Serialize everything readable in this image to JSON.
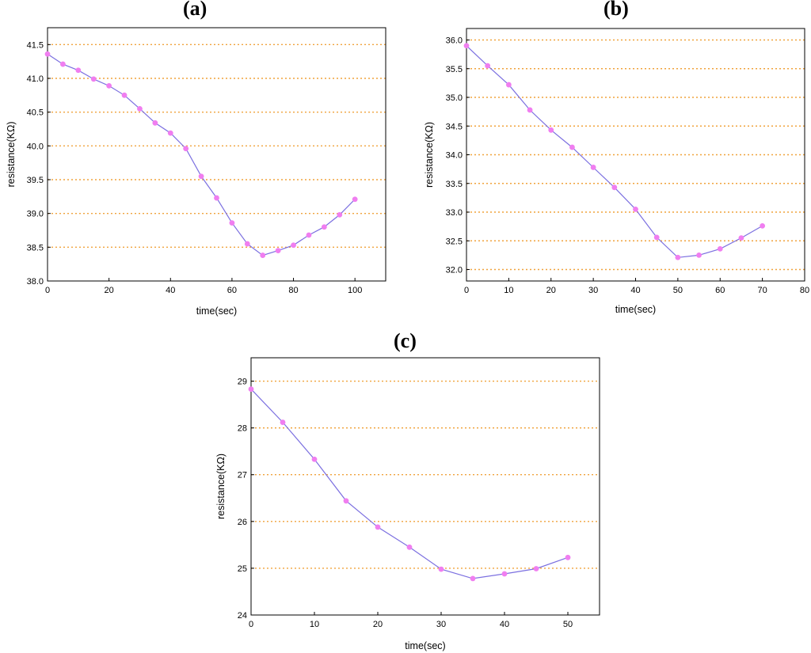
{
  "chart_data": [
    {
      "type": "line",
      "panel_label": "(a)",
      "xlabel": "time(sec)",
      "ylabel": "resistance(KΩ)",
      "xlim": [
        0,
        110
      ],
      "ylim": [
        38.0,
        41.75
      ],
      "xticks": [
        0,
        20,
        40,
        60,
        80,
        100
      ],
      "yticks": [
        38.0,
        38.5,
        39.0,
        39.5,
        40.0,
        40.5,
        41.0,
        41.5
      ],
      "tick_decimals": 1,
      "grid": "horizontal dotted",
      "colors": {
        "line": "#7b6fe0",
        "marker": "#f07ef0",
        "grid": "#f0a33c"
      },
      "series": [
        {
          "x": [
            0,
            5,
            10,
            15,
            20,
            25,
            30,
            35,
            40,
            45,
            50,
            55,
            60,
            65,
            70,
            75,
            80,
            85,
            90,
            95,
            100
          ],
          "y": [
            41.36,
            41.21,
            41.12,
            40.99,
            40.89,
            40.75,
            40.55,
            40.34,
            40.19,
            39.96,
            39.55,
            39.23,
            38.86,
            38.55,
            38.38,
            38.45,
            38.53,
            38.68,
            38.8,
            38.98,
            39.21
          ]
        }
      ]
    },
    {
      "type": "line",
      "panel_label": "(b)",
      "xlabel": "time(sec)",
      "ylabel": "resistance(KΩ)",
      "xlim": [
        0,
        80
      ],
      "ylim": [
        31.8,
        36.2
      ],
      "xticks": [
        0,
        10,
        20,
        30,
        40,
        50,
        60,
        70,
        80
      ],
      "yticks": [
        32.0,
        32.5,
        33.0,
        33.5,
        34.0,
        34.5,
        35.0,
        35.5,
        36.0
      ],
      "tick_decimals": 1,
      "grid": "horizontal dotted",
      "colors": {
        "line": "#7b6fe0",
        "marker": "#f07ef0",
        "grid": "#f0a33c"
      },
      "series": [
        {
          "x": [
            0,
            5,
            10,
            15,
            20,
            25,
            30,
            35,
            40,
            45,
            50,
            55,
            60,
            65,
            70
          ],
          "y": [
            35.9,
            35.55,
            35.22,
            34.78,
            34.43,
            34.13,
            33.78,
            33.43,
            33.05,
            32.56,
            32.21,
            32.25,
            32.36,
            32.55,
            32.76
          ]
        }
      ]
    },
    {
      "type": "line",
      "panel_label": "(c)",
      "xlabel": "time(sec)",
      "ylabel": "resistance(KΩ)",
      "xlim": [
        0,
        55
      ],
      "ylim": [
        24,
        29.5
      ],
      "xticks": [
        0,
        10,
        20,
        30,
        40,
        50
      ],
      "yticks": [
        24,
        25,
        26,
        27,
        28,
        29
      ],
      "tick_decimals": 0,
      "grid": "horizontal dotted",
      "colors": {
        "line": "#7b6fe0",
        "marker": "#f07ef0",
        "grid": "#f0a33c"
      },
      "series": [
        {
          "x": [
            0,
            5,
            10,
            15,
            20,
            25,
            30,
            35,
            40,
            45,
            50
          ],
          "y": [
            28.83,
            28.12,
            27.33,
            26.44,
            25.88,
            25.45,
            24.98,
            24.78,
            24.88,
            24.99,
            25.23
          ]
        }
      ]
    }
  ]
}
